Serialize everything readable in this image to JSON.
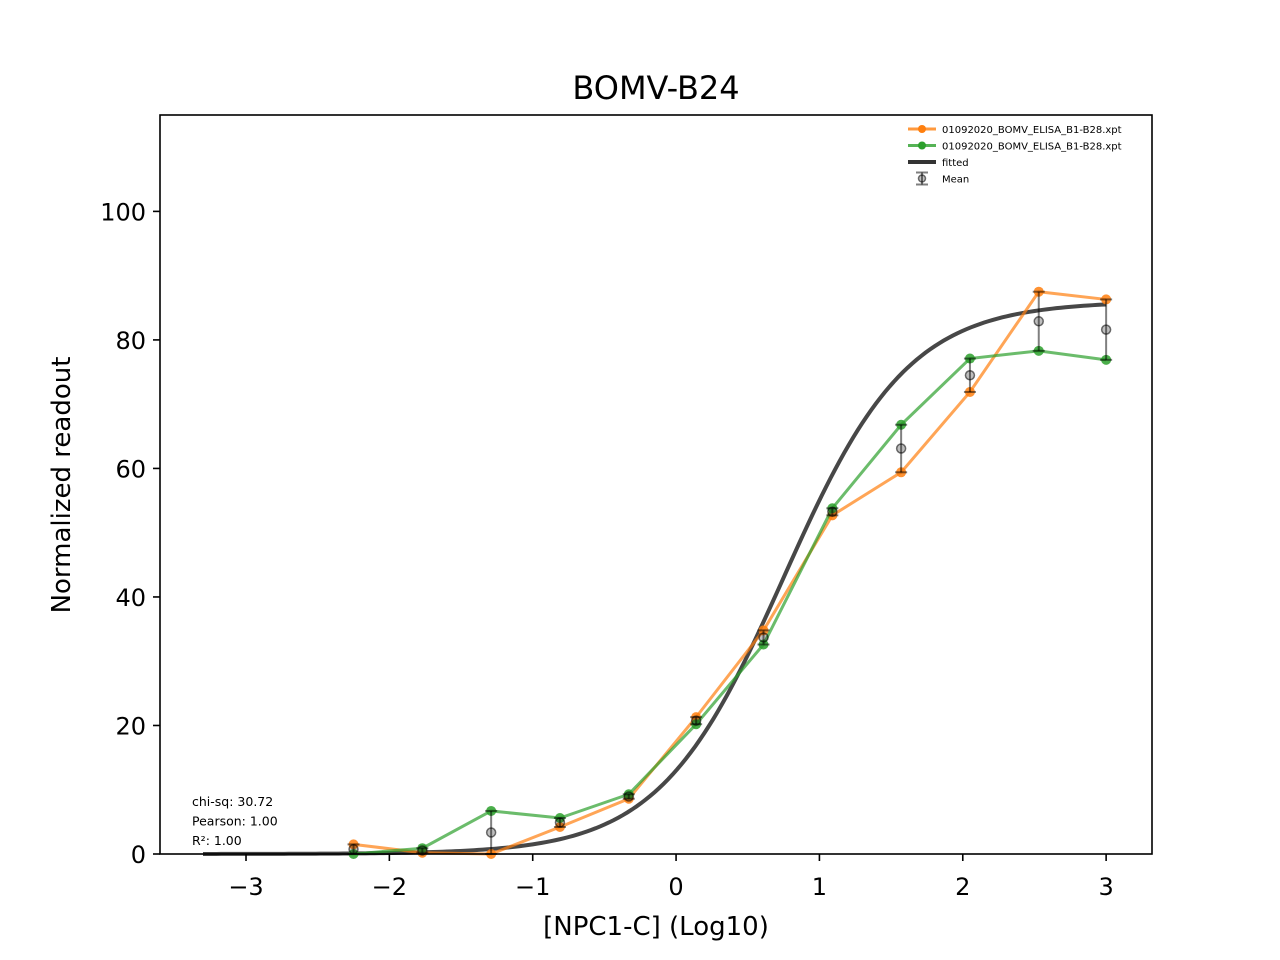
{
  "chart_data": {
    "type": "line",
    "title": "BOMV-B24",
    "xlabel": "[NPC1-C] (Log10)",
    "ylabel": "Normalized readout",
    "xlim": [
      -3.6,
      3.32
    ],
    "ylim": [
      0,
      115
    ],
    "xticks": [
      -3,
      -2,
      -1,
      0,
      1,
      2,
      3
    ],
    "xtick_labels": [
      "−3",
      "−2",
      "−1",
      "0",
      "1",
      "2",
      "3"
    ],
    "yticks": [
      0,
      20,
      40,
      60,
      80,
      100
    ],
    "ytick_labels": [
      "0",
      "20",
      "40",
      "60",
      "80",
      "100"
    ],
    "grid": false,
    "legend_position": "top-right",
    "x": [
      -2.25,
      -1.77,
      -1.29,
      -0.81,
      -0.33,
      0.14,
      0.61,
      1.09,
      1.57,
      2.05,
      2.53,
      3.0
    ],
    "series": [
      {
        "name": "01092020_BOMV_ELISA_B1-B28.xpt",
        "color": "#ff7f0e",
        "values": [
          1.5,
          0.2,
          0.0,
          4.2,
          8.6,
          21.3,
          34.8,
          52.7,
          59.4,
          71.9,
          87.5,
          86.3
        ]
      },
      {
        "name": "01092020_BOMV_ELISA_B1-B28.xpt",
        "color": "#2ca02c",
        "values": [
          0.0,
          0.9,
          6.7,
          5.6,
          9.3,
          20.2,
          32.6,
          53.8,
          66.8,
          77.1,
          78.3,
          76.9
        ]
      }
    ],
    "mean": {
      "name": "Mean",
      "color": "#000000",
      "values": [
        0.75,
        0.55,
        3.35,
        4.9,
        8.95,
        20.75,
        33.7,
        53.25,
        63.1,
        74.5,
        82.9,
        81.6
      ]
    },
    "fitted": {
      "name": "fitted",
      "color": "#333333",
      "x_range": [
        -3.3,
        3.0
      ],
      "bottom": 0,
      "top": 86,
      "logEC50": 0.75,
      "hill": 1.0
    },
    "stats": [
      "chi-sq: 30.72",
      "Pearson: 1.00",
      "R²: 1.00"
    ]
  }
}
